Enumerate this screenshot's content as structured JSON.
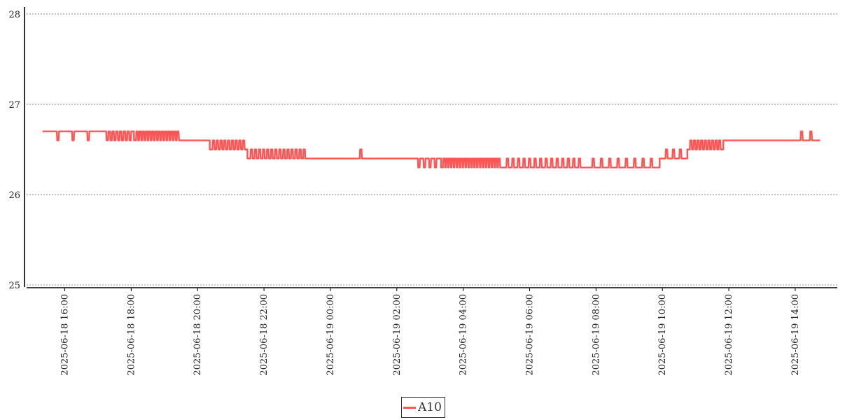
{
  "chart_data": {
    "type": "line",
    "title": "",
    "xlabel": "",
    "ylabel": "",
    "ylim": [
      25,
      28
    ],
    "yticks": [
      25,
      26,
      27,
      28
    ],
    "xlim": [
      "2025-06-18 14:51",
      "2025-06-19 15:16"
    ],
    "xticks": [
      "2025-06-18 16:00",
      "2025-06-18 18:00",
      "2025-06-18 20:00",
      "2025-06-18 22:00",
      "2025-06-19 00:00",
      "2025-06-19 02:00",
      "2025-06-19 04:00",
      "2025-06-19 06:00",
      "2025-06-19 08:00",
      "2025-06-19 10:00",
      "2025-06-19 12:00",
      "2025-06-19 14:00"
    ],
    "grid": "horizontal-dotted",
    "legend_position": "bottom-center",
    "series": [
      {
        "name": "A10",
        "color": "#ff5555",
        "segments": [
          {
            "start": "2025-06-18 15:20",
            "end": "2025-06-18 17:10",
            "value": 26.7,
            "dips_to": 26.6,
            "dip_count": 3
          },
          {
            "start": "2025-06-18 17:10",
            "end": "2025-06-18 18:05",
            "value": 26.7,
            "dips_to": 26.6,
            "dip_count": 7
          },
          {
            "start": "2025-06-18 18:05",
            "end": "2025-06-18 19:30",
            "value": 26.6,
            "spikes_to": 26.7,
            "spike_count": 14
          },
          {
            "start": "2025-06-18 19:30",
            "end": "2025-06-18 20:22",
            "value": 26.6,
            "dips_to": 26.5,
            "dip_count": 0
          },
          {
            "start": "2025-06-18 20:22",
            "end": "2025-06-18 21:30",
            "value": 26.5,
            "spikes_to": 26.6,
            "spike_count": 9
          },
          {
            "start": "2025-06-18 21:30",
            "end": "2025-06-18 23:20",
            "value": 26.4,
            "spikes_to": 26.5,
            "spike_count": 14
          },
          {
            "start": "2025-06-18 23:20",
            "end": "2025-06-19 02:30",
            "value": 26.4,
            "spikes_to": 26.5,
            "spike_count": 1
          },
          {
            "start": "2025-06-19 02:30",
            "end": "2025-06-19 03:20",
            "value": 26.4,
            "dips_to": 26.3,
            "dip_count": 4
          },
          {
            "start": "2025-06-19 03:20",
            "end": "2025-06-19 05:10",
            "value": 26.3,
            "spikes_to": 26.4,
            "spike_count": 20
          },
          {
            "start": "2025-06-19 05:10",
            "end": "2025-06-19 07:40",
            "value": 26.3,
            "spikes_to": 26.4,
            "spike_count": 14
          },
          {
            "start": "2025-06-19 07:40",
            "end": "2025-06-19 09:55",
            "value": 26.3,
            "spikes_to": 26.4,
            "spike_count": 8
          },
          {
            "start": "2025-06-19 09:55",
            "end": "2025-06-19 10:45",
            "value": 26.4,
            "spikes_to": 26.5,
            "spike_count": 3
          },
          {
            "start": "2025-06-19 10:45",
            "end": "2025-06-19 11:50",
            "value": 26.5,
            "spikes_to": 26.6,
            "spike_count": 9
          },
          {
            "start": "2025-06-19 11:50",
            "end": "2025-06-19 13:55",
            "value": 26.6,
            "spikes_to": 26.7,
            "spike_count": 0
          },
          {
            "start": "2025-06-19 13:55",
            "end": "2025-06-19 14:45",
            "value": 26.6,
            "spikes_to": 26.7,
            "spike_count": 2
          }
        ]
      }
    ]
  },
  "legend": {
    "label": "A10"
  }
}
